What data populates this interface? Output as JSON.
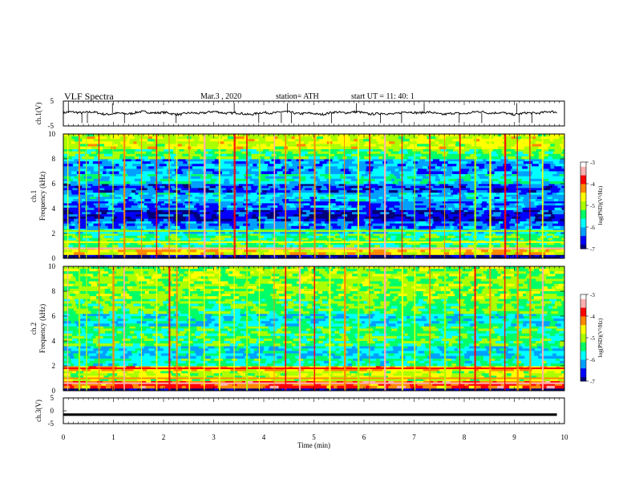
{
  "header": {
    "title": "VLF  Spectra",
    "date": "Mar.3  , 2020",
    "station": "station= ATH",
    "start": "start  UT  =    11: 40: 1"
  },
  "colors": {
    "spectrum": [
      "#00007a",
      "#0000ff",
      "#00a0ff",
      "#00ffff",
      "#00ff66",
      "#aaff00",
      "#ffff00",
      "#ff8800",
      "#ff0000",
      "#ffb0b0",
      "#ffffff"
    ],
    "waveform": "#000000"
  },
  "chart_data": [
    {
      "id": "ch1-waveform",
      "type": "line",
      "ylabel": "ch.1(V)",
      "ylim": [
        -5,
        5
      ],
      "yticks": [
        "5",
        "-5"
      ],
      "xlim": [
        0,
        10
      ],
      "baseline": 0.2,
      "spikes_min": [
        0.1,
        0.37,
        0.48,
        0.98,
        1.22,
        2.25,
        3.41,
        3.9,
        4.35,
        4.47,
        4.55,
        5.35,
        5.85,
        6.33,
        6.75,
        7.2,
        7.9,
        8.35,
        9.05,
        9.1,
        9.35
      ]
    },
    {
      "id": "ch1-spectrogram",
      "type": "heatmap",
      "ylabel_top": "ch.1",
      "ylabel": "Frequency  (kHz)",
      "ylim": [
        0,
        10
      ],
      "yticks": [
        "0",
        "2",
        "4",
        "6",
        "8",
        "10"
      ],
      "xlim": [
        0,
        10
      ],
      "colorbar": {
        "label": "log(PSD)(V²/Hz)",
        "range": [
          -7,
          -3
        ],
        "ticks": [
          "-3",
          "-4",
          "-5",
          "-6",
          "-7"
        ]
      },
      "bands": [
        {
          "kHz": [
            0,
            0.3
          ],
          "level": -7
        },
        {
          "kHz": [
            0.3,
            0.9
          ],
          "level": -4.6
        },
        {
          "kHz": [
            0.9,
            2.0
          ],
          "level": -5.4
        },
        {
          "kHz": [
            2.0,
            2.4
          ],
          "level": -5.9
        },
        {
          "kHz": [
            2.4,
            3.0
          ],
          "level": -6.3
        },
        {
          "kHz": [
            3.0,
            3.9
          ],
          "level": -6.7
        },
        {
          "kHz": [
            3.9,
            4.6
          ],
          "level": -6.3
        },
        {
          "kHz": [
            4.6,
            5.3
          ],
          "level": -6.0
        },
        {
          "kHz": [
            5.3,
            6.0
          ],
          "level": -6.5
        },
        {
          "kHz": [
            6.0,
            6.8
          ],
          "level": -5.8
        },
        {
          "kHz": [
            6.8,
            8.0
          ],
          "level": -6.1
        },
        {
          "kHz": [
            8.0,
            8.8
          ],
          "level": -5.3
        },
        {
          "kHz": [
            8.8,
            10.0
          ],
          "level": -4.8
        }
      ],
      "sferics_min": [
        0.08,
        0.3,
        0.45,
        0.7,
        0.98,
        1.2,
        1.55,
        1.85,
        2.1,
        2.25,
        2.5,
        2.8,
        3.1,
        3.4,
        3.65,
        3.9,
        4.2,
        4.42,
        4.7,
        5.0,
        5.3,
        5.6,
        5.87,
        6.1,
        6.4,
        6.75,
        7.0,
        7.3,
        7.6,
        7.9,
        8.2,
        8.5,
        8.8,
        9.05,
        9.3,
        9.55
      ],
      "lines_kHz": [
        {
          "kHz": 0.8,
          "level": -3.6
        },
        {
          "kHz": 1.3,
          "level": -4.8
        },
        {
          "kHz": 2.2,
          "level": -5.0
        }
      ]
    },
    {
      "id": "ch2-spectrogram",
      "type": "heatmap",
      "ylabel_top": "ch.2",
      "ylabel": "Frequency  (kHz)",
      "ylim": [
        0,
        10
      ],
      "yticks": [
        "0",
        "2",
        "4",
        "6",
        "8",
        "10"
      ],
      "xlim": [
        0,
        10
      ],
      "colorbar": {
        "label": "log(PSD)(V²/Hz)",
        "range": [
          -7,
          -3
        ],
        "ticks": [
          "-3",
          "-4",
          "-5",
          "-6",
          "-7"
        ]
      },
      "bands": [
        {
          "kHz": [
            0,
            0.2
          ],
          "level": -7
        },
        {
          "kHz": [
            0.2,
            0.8
          ],
          "level": -4.0
        },
        {
          "kHz": [
            0.8,
            1.6
          ],
          "level": -4.9
        },
        {
          "kHz": [
            1.6,
            2.0
          ],
          "level": -4.4
        },
        {
          "kHz": [
            2.0,
            2.6
          ],
          "level": -5.6
        },
        {
          "kHz": [
            2.6,
            3.6
          ],
          "level": -5.9
        },
        {
          "kHz": [
            3.6,
            5.2
          ],
          "level": -5.4
        },
        {
          "kHz": [
            5.2,
            6.2
          ],
          "level": -5.8
        },
        {
          "kHz": [
            6.2,
            7.4
          ],
          "level": -5.3
        },
        {
          "kHz": [
            7.4,
            10.0
          ],
          "level": -5.1
        }
      ],
      "sferics_min": [
        0.08,
        0.3,
        0.45,
        0.7,
        0.98,
        1.2,
        1.55,
        1.85,
        2.1,
        2.25,
        2.5,
        2.8,
        3.1,
        3.4,
        3.65,
        3.9,
        4.2,
        4.42,
        4.7,
        5.0,
        5.3,
        5.6,
        5.87,
        6.1,
        6.4,
        6.75,
        7.0,
        7.3,
        7.6,
        7.9,
        8.2,
        8.5,
        8.8,
        9.05,
        9.3,
        9.55
      ],
      "lines_kHz": [
        {
          "kHz": 0.6,
          "level": -3.4
        },
        {
          "kHz": 1.8,
          "level": -3.9
        },
        {
          "kHz": 1.0,
          "level": -4.3
        }
      ]
    },
    {
      "id": "ch3-waveform",
      "type": "line",
      "ylabel": "ch.3(V)",
      "ylim": [
        -5,
        5
      ],
      "yticks": [
        "5",
        "0",
        "-5"
      ],
      "xlim": [
        0,
        10
      ],
      "baseline": -1.5
    }
  ],
  "xaxis": {
    "label": "Time  (min)",
    "ticks": [
      "0",
      "1",
      "2",
      "3",
      "4",
      "5",
      "6",
      "7",
      "8",
      "9",
      "10"
    ]
  }
}
